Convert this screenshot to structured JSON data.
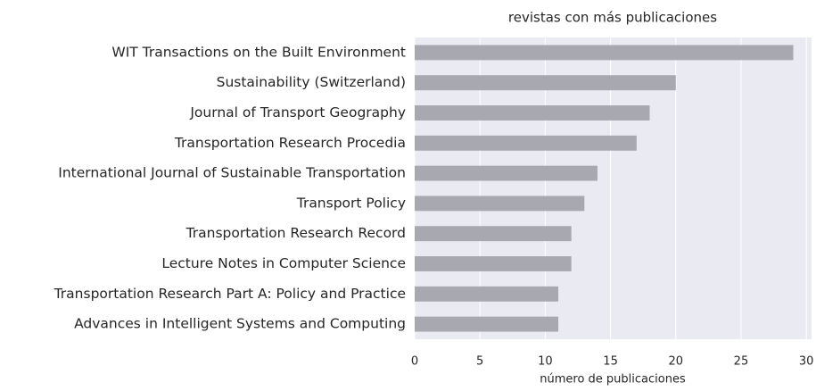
{
  "chart_data": {
    "type": "barh",
    "title": "revistas con más publicaciones",
    "x_label": "número de publicaciones",
    "categories": [
      "WIT Transactions on the Built Environment",
      "Sustainability (Switzerland)",
      "Journal of Transport Geography",
      "Transportation Research Procedia",
      "International Journal of Sustainable Transportation",
      "Transport Policy",
      "Transportation Research Record",
      "Lecture Notes in Computer Science",
      "Transportation Research Part A: Policy and Practice",
      "Advances in Intelligent Systems and Computing"
    ],
    "values": [
      29,
      20,
      18,
      17,
      14,
      13,
      12,
      12,
      11,
      11
    ],
    "color": "#a8a8b0",
    "xlim": [
      0,
      30.4
    ],
    "xticks": [
      0,
      5,
      10,
      15,
      20,
      25,
      30
    ],
    "grid": true
  }
}
